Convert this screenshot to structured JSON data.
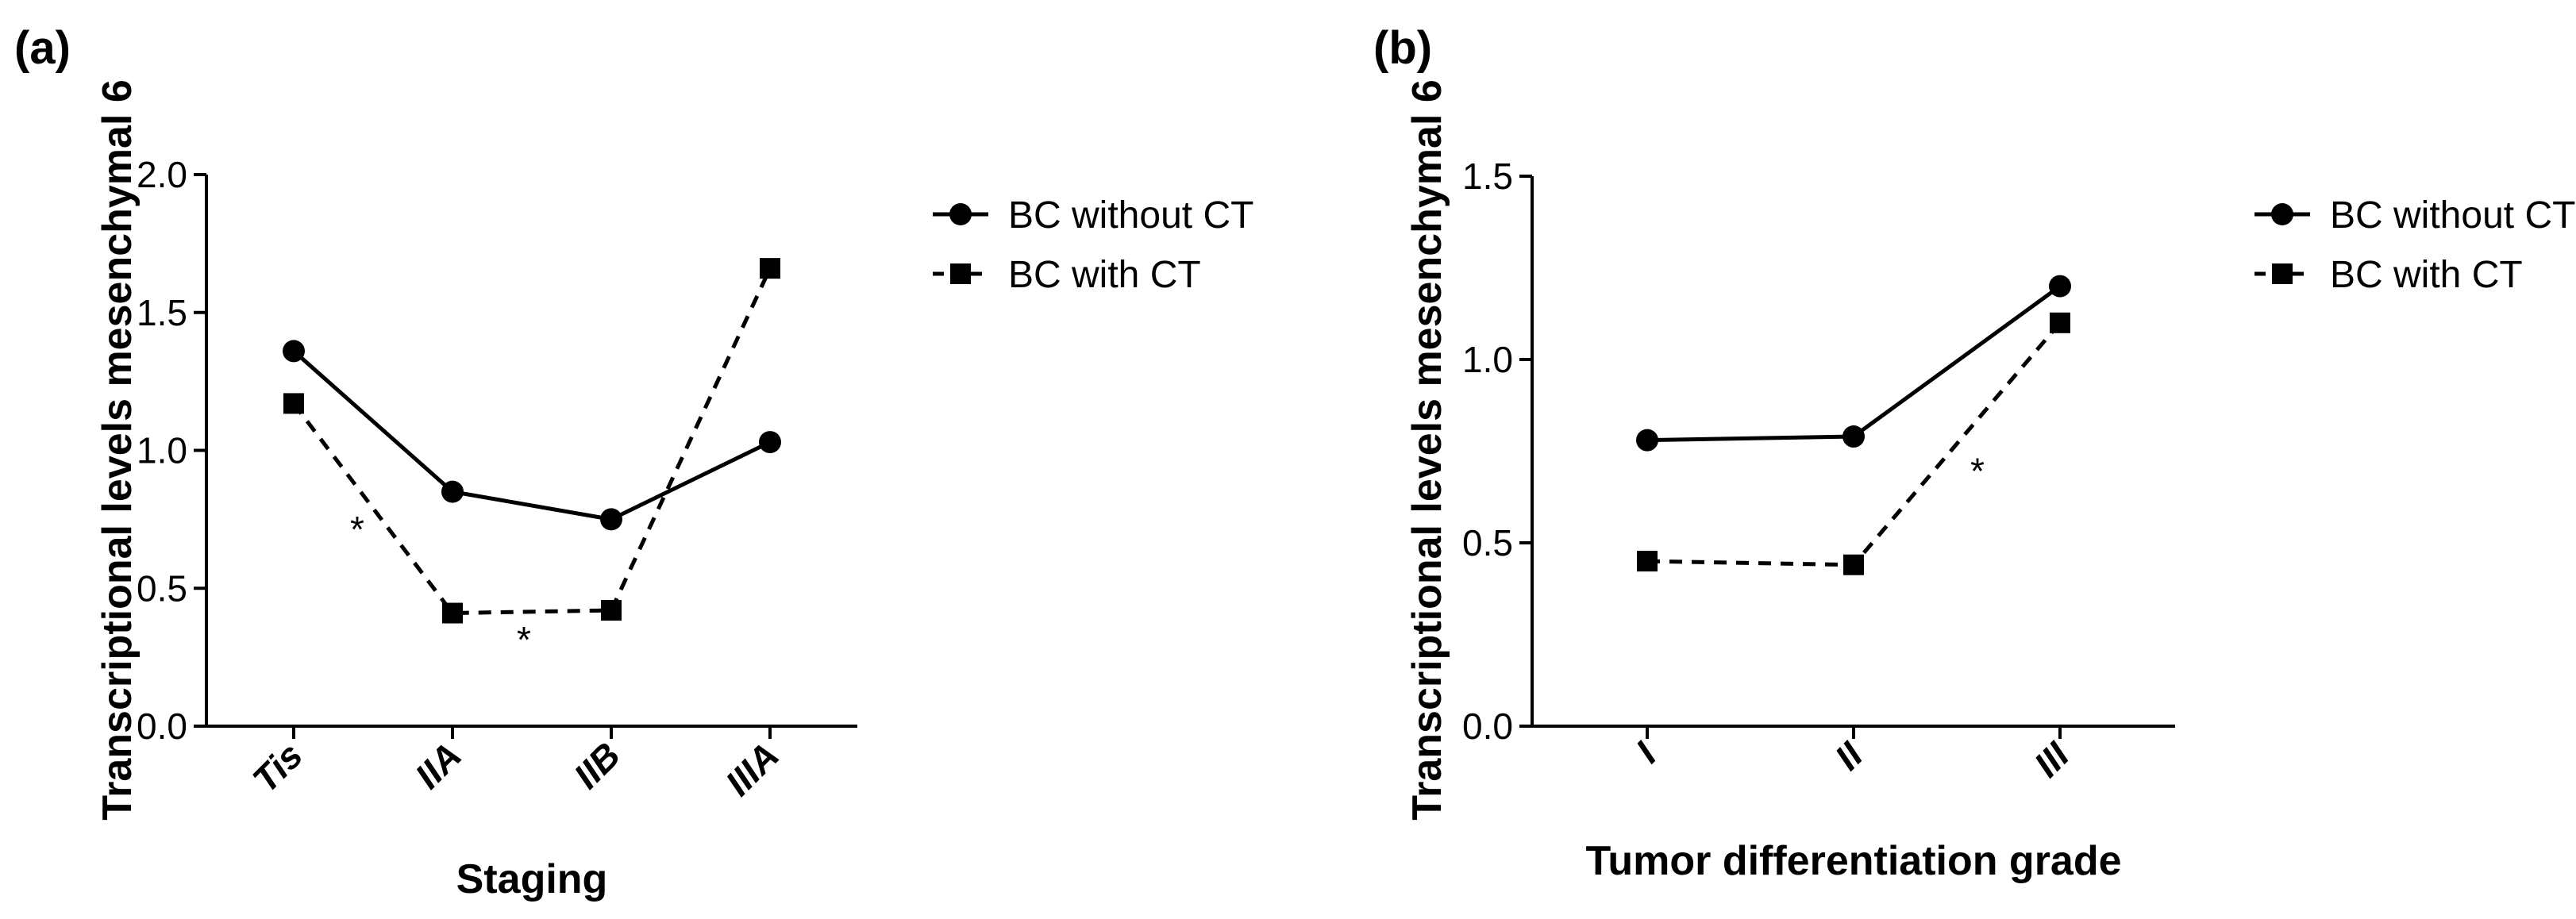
{
  "chart_data": [
    {
      "type": "line",
      "panel_label": "(a)",
      "xlabel": "Staging",
      "ylabel": "Transcriptional levels mesenchymal 6",
      "categories": [
        "Tis",
        "IIA",
        "IIB",
        "IIIA"
      ],
      "ylim": [
        0,
        2.0
      ],
      "yticks": [
        "0.0",
        "0.5",
        "1.0",
        "1.5",
        "2.0"
      ],
      "grid": false,
      "legend_position": "right",
      "series": [
        {
          "name": "BC without CT",
          "values": [
            1.36,
            0.85,
            0.75,
            1.03
          ],
          "marker": "circle",
          "line": "solid",
          "color": "#000000"
        },
        {
          "name": "BC with CT",
          "values": [
            1.17,
            0.41,
            0.42,
            1.66
          ],
          "marker": "square",
          "line": "dashed",
          "color": "#000000"
        }
      ],
      "annotations": [
        {
          "text": "*",
          "x": 0.4,
          "y": 0.72
        },
        {
          "text": "*",
          "x": 1.45,
          "y": 0.32
        }
      ]
    },
    {
      "type": "line",
      "panel_label": "(b)",
      "xlabel": "Tumor differentiation grade",
      "ylabel": "Transcriptional levels mesenchymal 6",
      "categories": [
        "I",
        "II",
        "III"
      ],
      "ylim": [
        0,
        1.5
      ],
      "yticks": [
        "0.0",
        "0.5",
        "1.0",
        "1.5"
      ],
      "grid": false,
      "legend_position": "right",
      "series": [
        {
          "name": "BC without CT",
          "values": [
            0.78,
            0.79,
            1.2
          ],
          "marker": "circle",
          "line": "solid",
          "color": "#000000"
        },
        {
          "name": "BC with CT",
          "values": [
            0.45,
            0.44,
            1.1
          ],
          "marker": "square",
          "line": "dashed",
          "color": "#000000"
        }
      ],
      "annotations": [
        {
          "text": "*",
          "x": 1.6,
          "y": 0.7
        }
      ]
    }
  ]
}
